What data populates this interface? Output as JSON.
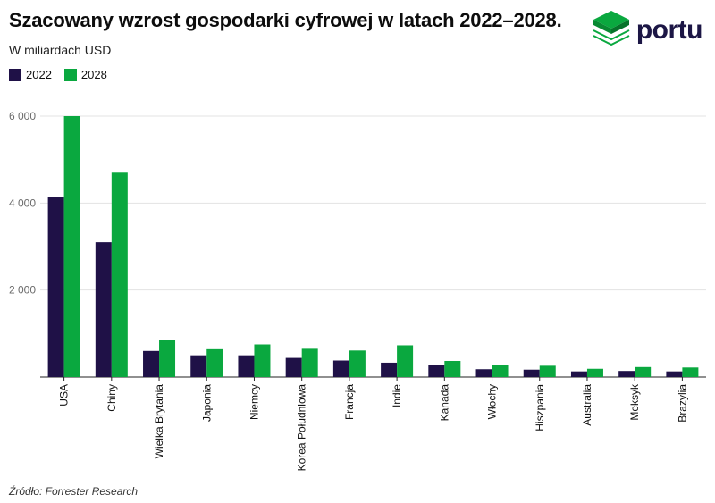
{
  "chart_data": {
    "type": "bar",
    "title": "Szacowany wzrost gospodarki cyfrowej w latach 2022–2028.",
    "subtitle": "W miliardach USD",
    "source": "Źródło: Forrester Research",
    "categories": [
      "USA",
      "Chiny",
      "Wielka Brytania",
      "Japonia",
      "Niemcy",
      "Korea Południowa",
      "Francja",
      "Indie",
      "Kanada",
      "Włochy",
      "Hiszpania",
      "Australia",
      "Meksyk",
      "Brazylia"
    ],
    "series": [
      {
        "name": "2022",
        "color": "#1f1147",
        "values": [
          4130,
          3100,
          600,
          500,
          500,
          440,
          380,
          330,
          270,
          180,
          170,
          130,
          140,
          130
        ]
      },
      {
        "name": "2028",
        "color": "#0aa83f",
        "values": [
          6000,
          4700,
          850,
          640,
          750,
          650,
          610,
          730,
          370,
          270,
          260,
          190,
          230,
          220
        ]
      }
    ],
    "y_ticks": [
      "2 000",
      "4 000",
      "6 000"
    ],
    "y_tick_values": [
      2000,
      4000,
      6000
    ],
    "ylim": [
      0,
      6000
    ],
    "grid": true,
    "legend_position": "top-left"
  },
  "logo": {
    "text": "portu",
    "icon": "portu-cube-logo-icon",
    "color_top": "#0aa83f",
    "color_text": "#1c1645"
  }
}
